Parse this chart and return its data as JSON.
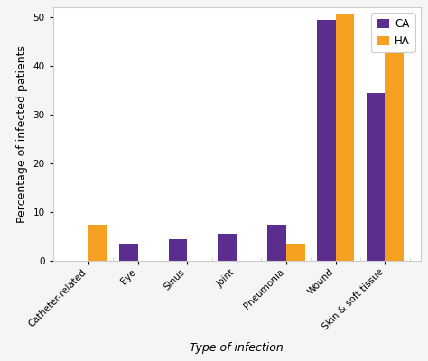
{
  "categories": [
    "Catheter-related",
    "Eye",
    "Sinus",
    "Joint",
    "Pneumonia",
    "Wound",
    "Skin & soft tissue"
  ],
  "CA_values": [
    0,
    3.5,
    4.5,
    5.5,
    7.5,
    49.5,
    34.5
  ],
  "HA_values": [
    7.5,
    0,
    0,
    0,
    3.5,
    50.5,
    44.5
  ],
  "CA_color": "#5b2d8e",
  "HA_color": "#f5a020",
  "ylabel": "Percentage of infected patients",
  "xlabel": "Type of infection",
  "ylim": [
    0,
    52
  ],
  "yticks": [
    0,
    10,
    20,
    30,
    40,
    50
  ],
  "legend_labels": [
    "CA",
    "HA"
  ],
  "background_color": "#f5f5f5",
  "plot_bg_color": "#ffffff",
  "bar_width": 0.38,
  "tick_label_fontsize": 7.5,
  "axis_label_fontsize": 9,
  "legend_fontsize": 8.5,
  "border_color": "#cccccc"
}
